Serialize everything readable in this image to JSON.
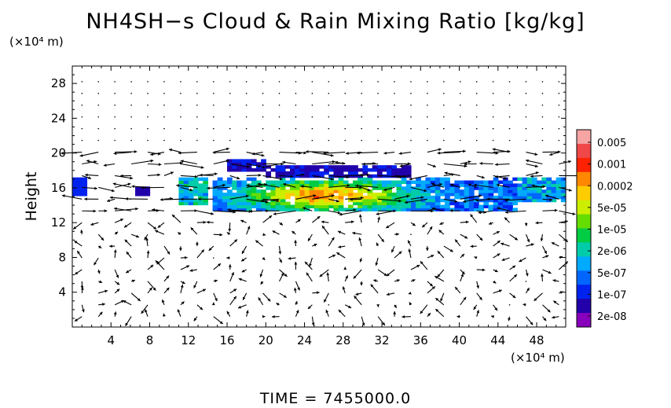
{
  "title": "NH4SH−s Cloud & Rain Mixing Ratio [kg/kg]",
  "y_unit": "(×10⁴ m)",
  "x_unit": "(×10⁴ m)",
  "time_label": "TIME  =  7455000.0",
  "chart_data": {
    "type": "heatmap",
    "title": "NH4SH−s Cloud & Rain Mixing Ratio [kg/kg]",
    "xlabel": "",
    "ylabel": "Height",
    "xlim": [
      0,
      51
    ],
    "ylim": [
      0,
      30
    ],
    "x_ticks": [
      "4",
      "8",
      "12",
      "16",
      "20",
      "24",
      "28",
      "32",
      "36",
      "40",
      "44",
      "48"
    ],
    "y_ticks": [
      "4",
      "8",
      "12",
      "16",
      "20",
      "24",
      "28"
    ],
    "colorbar": {
      "labels": [
        "0.005",
        "0.001",
        "0.0002",
        "5e-05",
        "1e-05",
        "2e-06",
        "5e-07",
        "1e-07",
        "2e-08"
      ],
      "colors": [
        "#f7a4a4",
        "#f04848",
        "#ff2200",
        "#ff8800",
        "#ffcc00",
        "#ccee00",
        "#66dd00",
        "#00cc44",
        "#00ccaa",
        "#00aaff",
        "#0066ff",
        "#0022ee",
        "#2200aa",
        "#8800bb"
      ]
    },
    "overlay": "wind vector arrows",
    "cloud_bands": [
      {
        "x": [
          0,
          51
        ],
        "y": [
          13.5,
          17
        ],
        "intensity": "1e-07 to 5e-05"
      },
      {
        "x": [
          16,
          35
        ],
        "y": [
          17,
          19
        ],
        "intensity": "2e-08 to 1e-07"
      }
    ]
  }
}
